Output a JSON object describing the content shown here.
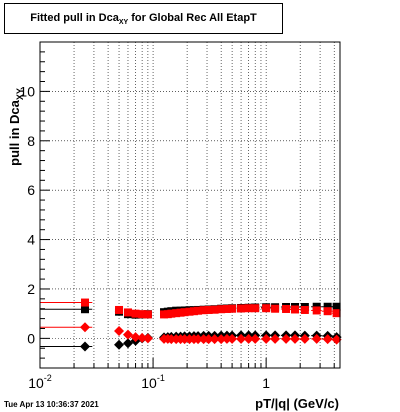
{
  "title": {
    "main": "Fitted pull in Dca",
    "sub": "XY",
    "rest": " for Global Rec All EtapT"
  },
  "timestamp": "Tue Apr 13 10:36:37 2021",
  "chart_data": {
    "type": "scatter",
    "xlabel": "pT/|q| (GeV/c)",
    "ylabel_main": "pull in Dca",
    "ylabel_sub": "XY",
    "xscale": "log",
    "xlim": [
      0.01,
      4.5
    ],
    "ylim": [
      -1.2,
      12
    ],
    "grid": true,
    "x_ticks": [
      {
        "value": 0.01,
        "label": "10",
        "exp": "-2"
      },
      {
        "value": 0.1,
        "label": "10",
        "exp": "-1"
      },
      {
        "value": 1,
        "label": "1",
        "exp": ""
      }
    ],
    "y_ticks": [
      0,
      2,
      4,
      6,
      8,
      10
    ],
    "series": [
      {
        "color": "#000000",
        "marker": "square",
        "x": [
          0.025,
          0.05,
          0.06,
          0.07,
          0.08,
          0.09,
          0.125,
          0.135,
          0.145,
          0.16,
          0.175,
          0.19,
          0.21,
          0.23,
          0.25,
          0.28,
          0.31,
          0.35,
          0.4,
          0.45,
          0.5,
          0.6,
          0.7,
          0.8,
          1.0,
          1.2,
          1.5,
          1.8,
          2.2,
          2.8,
          3.5,
          4.2
        ],
        "y": [
          1.18,
          1.08,
          0.98,
          0.96,
          0.97,
          0.98,
          1.06,
          1.08,
          1.1,
          1.12,
          1.12,
          1.13,
          1.14,
          1.14,
          1.15,
          1.16,
          1.17,
          1.18,
          1.2,
          1.21,
          1.22,
          1.23,
          1.24,
          1.25,
          1.26,
          1.26,
          1.27,
          1.27,
          1.27,
          1.28,
          1.28,
          1.28
        ],
        "xerr": [
          0.004,
          0.004,
          0.004,
          0.004,
          0.005,
          0.005,
          0.005,
          0.005,
          0.005,
          0.007,
          0.007,
          0.008,
          0.009,
          0.01,
          0.012,
          0.014,
          0.016,
          0.02,
          0.025,
          0.025,
          0.03,
          0.05,
          0.05,
          0.07,
          0.1,
          0.1,
          0.15,
          0.2,
          0.2,
          0.3,
          0.4,
          0.4
        ],
        "xerr_first_left": 0.015
      },
      {
        "color": "#ff0000",
        "marker": "square",
        "x": [
          0.025,
          0.05,
          0.06,
          0.07,
          0.08,
          0.09,
          0.125,
          0.135,
          0.145,
          0.16,
          0.175,
          0.19,
          0.21,
          0.23,
          0.25,
          0.28,
          0.31,
          0.35,
          0.4,
          0.45,
          0.5,
          0.6,
          0.7,
          0.8,
          1.0,
          1.2,
          1.5,
          1.8,
          2.2,
          2.8,
          3.5,
          4.2
        ],
        "y": [
          1.45,
          1.15,
          1.05,
          1.0,
          0.98,
          0.97,
          0.97,
          0.98,
          1.0,
          1.02,
          1.04,
          1.06,
          1.08,
          1.1,
          1.12,
          1.14,
          1.15,
          1.16,
          1.18,
          1.19,
          1.2,
          1.21,
          1.22,
          1.22,
          1.22,
          1.2,
          1.19,
          1.17,
          1.15,
          1.13,
          1.1,
          1.02
        ],
        "xerr": [
          0.004,
          0.004,
          0.004,
          0.004,
          0.005,
          0.005,
          0.005,
          0.005,
          0.005,
          0.007,
          0.007,
          0.008,
          0.009,
          0.01,
          0.012,
          0.014,
          0.016,
          0.02,
          0.025,
          0.025,
          0.03,
          0.05,
          0.05,
          0.07,
          0.1,
          0.1,
          0.15,
          0.2,
          0.2,
          0.3,
          0.4,
          0.4
        ],
        "xerr_first_left": 0.015
      },
      {
        "color": "#000000",
        "marker": "diamond",
        "x": [
          0.025,
          0.05,
          0.06,
          0.07,
          0.08,
          0.09,
          0.125,
          0.135,
          0.145,
          0.16,
          0.175,
          0.19,
          0.21,
          0.23,
          0.25,
          0.28,
          0.31,
          0.35,
          0.4,
          0.45,
          0.5,
          0.6,
          0.7,
          0.8,
          1.0,
          1.2,
          1.5,
          1.8,
          2.2,
          2.8,
          3.5,
          4.2
        ],
        "y": [
          -0.33,
          -0.26,
          -0.2,
          -0.1,
          0.0,
          0.02,
          0.04,
          0.05,
          0.06,
          0.07,
          0.07,
          0.08,
          0.08,
          0.09,
          0.09,
          0.1,
          0.1,
          0.1,
          0.11,
          0.11,
          0.11,
          0.12,
          0.12,
          0.12,
          0.12,
          0.12,
          0.12,
          0.12,
          0.11,
          0.11,
          0.1,
          0.05
        ],
        "xerr": [
          0.004,
          0.004,
          0.004,
          0.004,
          0.005,
          0.005,
          0.005,
          0.005,
          0.005,
          0.007,
          0.007,
          0.008,
          0.009,
          0.01,
          0.012,
          0.014,
          0.016,
          0.02,
          0.025,
          0.025,
          0.03,
          0.05,
          0.05,
          0.07,
          0.1,
          0.1,
          0.15,
          0.2,
          0.2,
          0.3,
          0.4,
          0.4
        ],
        "xerr_first_left": 0.015
      },
      {
        "color": "#ff0000",
        "marker": "diamond",
        "x": [
          0.025,
          0.05,
          0.06,
          0.07,
          0.08,
          0.09,
          0.125,
          0.135,
          0.145,
          0.16,
          0.175,
          0.19,
          0.21,
          0.23,
          0.25,
          0.28,
          0.31,
          0.35,
          0.4,
          0.45,
          0.5,
          0.6,
          0.7,
          0.8,
          1.0,
          1.2,
          1.5,
          1.8,
          2.2,
          2.8,
          3.5,
          4.2
        ],
        "y": [
          0.45,
          0.3,
          0.15,
          0.05,
          0.02,
          0.0,
          -0.02,
          -0.02,
          -0.03,
          -0.03,
          -0.03,
          -0.03,
          -0.03,
          -0.03,
          -0.03,
          -0.03,
          -0.03,
          -0.03,
          -0.03,
          -0.02,
          -0.02,
          -0.02,
          -0.02,
          -0.02,
          -0.02,
          -0.02,
          -0.02,
          -0.02,
          -0.02,
          -0.02,
          -0.03,
          -0.05
        ],
        "xerr": [
          0.004,
          0.004,
          0.004,
          0.004,
          0.005,
          0.005,
          0.005,
          0.005,
          0.005,
          0.007,
          0.007,
          0.008,
          0.009,
          0.01,
          0.012,
          0.014,
          0.016,
          0.02,
          0.025,
          0.025,
          0.03,
          0.05,
          0.05,
          0.07,
          0.1,
          0.1,
          0.15,
          0.2,
          0.2,
          0.3,
          0.4,
          0.4
        ],
        "xerr_first_left": 0.015
      }
    ]
  }
}
